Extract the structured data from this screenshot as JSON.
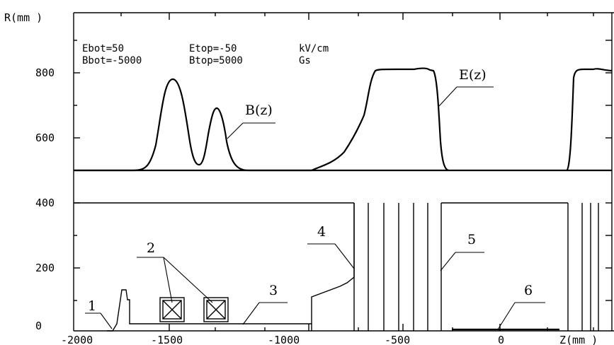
{
  "y_axis_label": "R(mm )",
  "x_axis_label": "Z(mm )",
  "y_ticks": [
    "0",
    "200",
    "400",
    "600",
    "800"
  ],
  "x_ticks": [
    "-2000",
    "-1500",
    "-1000",
    "-500",
    "0"
  ],
  "params": {
    "ebot": "Ebot=50",
    "etop": "Etop=-50",
    "e_unit": "kV/cm",
    "bbot": "Bbot=-5000",
    "btop": "Btop=5000",
    "b_unit": "Gs"
  },
  "curve_labels": {
    "b": "B(z)",
    "e": "E(z)"
  },
  "callouts": [
    "1",
    "2",
    "3",
    "4",
    "5",
    "6"
  ]
}
